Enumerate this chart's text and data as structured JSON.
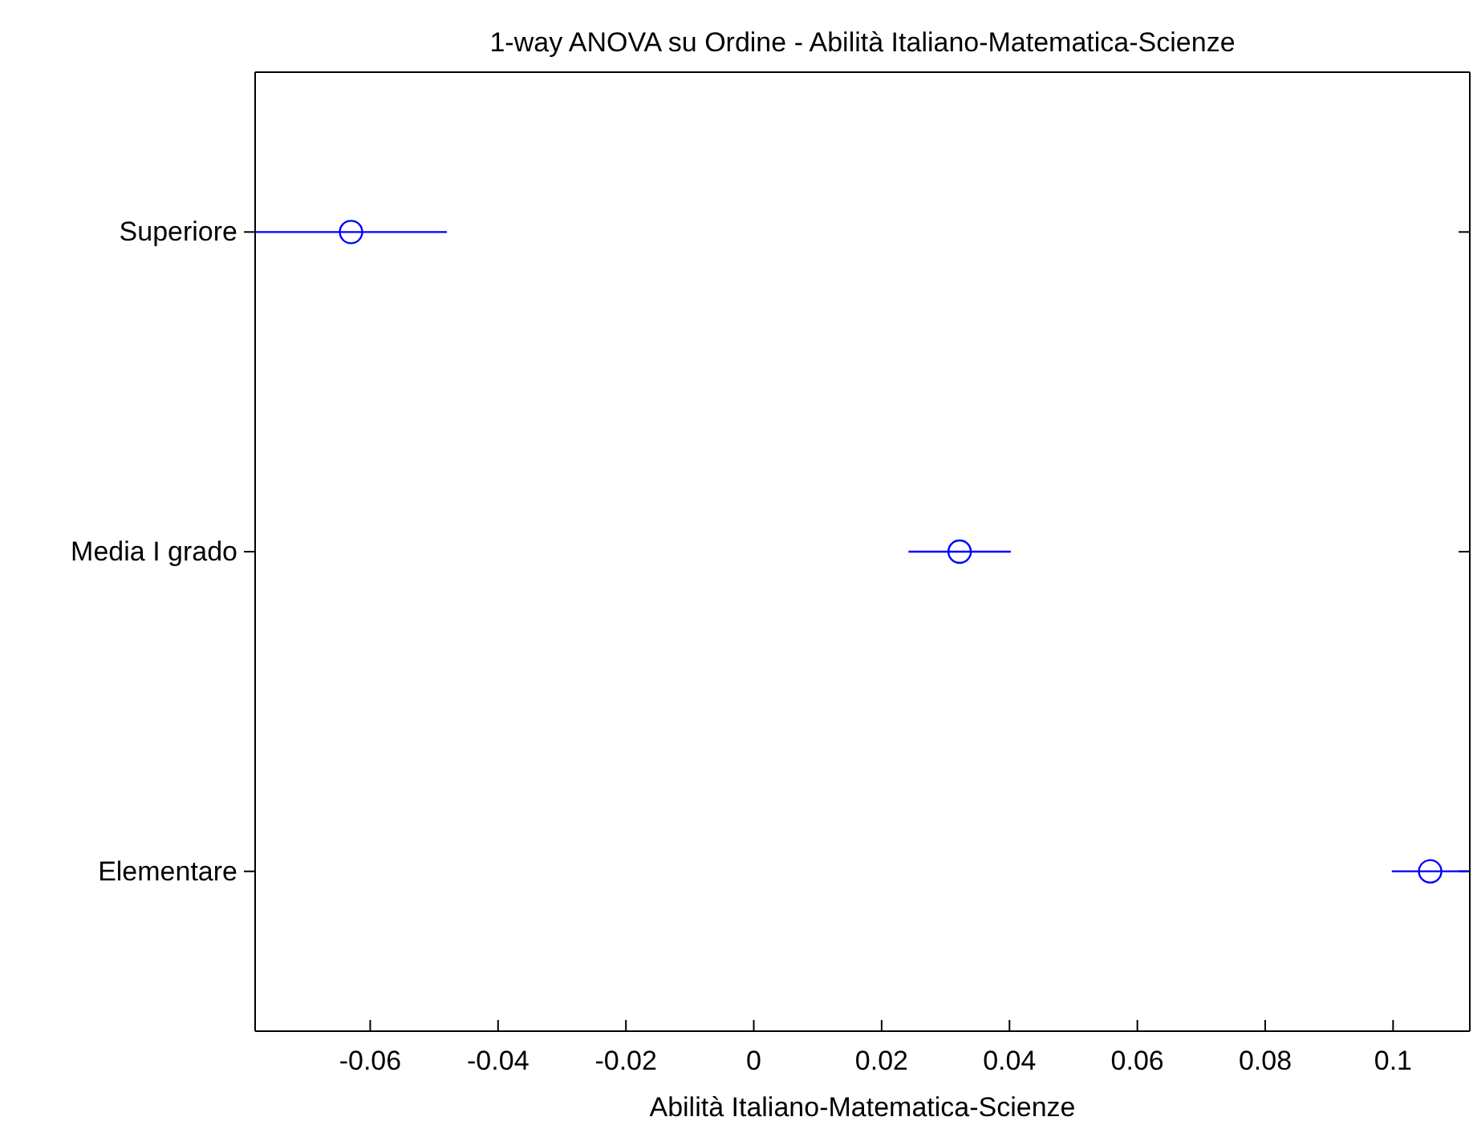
{
  "chart_data": {
    "type": "scatter",
    "orientation": "horizontal",
    "title": "1-way ANOVA su Ordine - Abilità Italiano-Matematica-Scienze",
    "xlabel": "Abilità Italiano-Matematica-Scienze",
    "categories": [
      "Superiore",
      "Media I grado",
      "Elementare"
    ],
    "series": [
      {
        "color": "#0000ff",
        "values": [
          -0.063,
          0.0322,
          0.1058
        ],
        "errors": [
          0.015,
          0.008,
          0.006
        ]
      }
    ],
    "xlim": [
      -0.078,
      0.112
    ],
    "xticks": [
      -0.06,
      -0.04,
      -0.02,
      0,
      0.02,
      0.04,
      0.06,
      0.08,
      0.1
    ],
    "marker": "circle",
    "grid": false
  }
}
